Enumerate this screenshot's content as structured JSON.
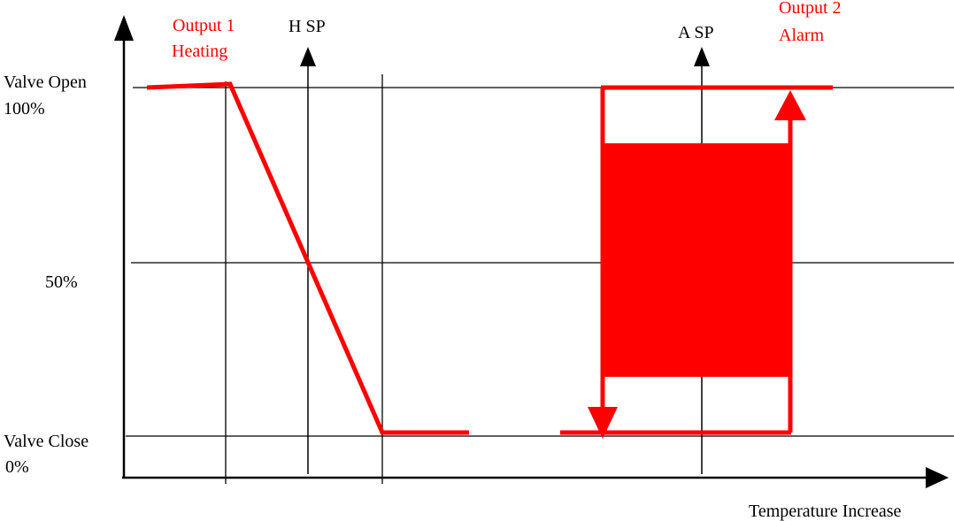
{
  "colors": {
    "line": "#000000",
    "accent": "#ff0000",
    "background": "#ffffff"
  },
  "labels": {
    "valve_open": "Valve Open",
    "pct_100": "100%",
    "pct_50": "50%",
    "valve_close": "Valve Close",
    "pct_0": "0%",
    "output1_line1": "Output 1",
    "output1_line2": "Heating",
    "heating_setpoint": "H SP",
    "alarm_setpoint": "A SP",
    "output2_line1": "Output 2",
    "output2_line2": "Alarm",
    "x_axis": "Temperature Increase"
  }
}
